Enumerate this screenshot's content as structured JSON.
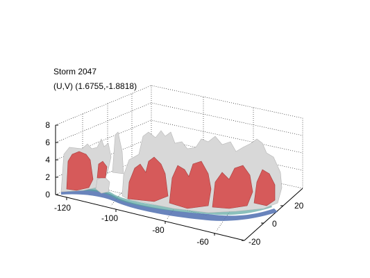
{
  "chart_data": {
    "type": "3d-isosurface",
    "title": "Storm 2047",
    "subtitle": "(U,V) (1.6755,-1.8818)",
    "x_ticks": [
      "-120",
      "-100",
      "-80",
      "-60"
    ],
    "y_ticks": [
      "-20",
      "0",
      "20"
    ],
    "z_ticks": [
      "0",
      "2",
      "4",
      "6",
      "8"
    ],
    "xlim": [
      -125,
      -50
    ],
    "ylim": [
      -25,
      30
    ],
    "zlim": [
      0,
      8
    ],
    "grid": true,
    "surfaces": [
      {
        "name": "",
        "color": "#d8d8d8",
        "role": "outer"
      },
      {
        "name": "",
        "color": "#d65a5a",
        "role": "inner"
      }
    ],
    "floor_colors": [
      "#4f6fb0",
      "#5aa5a0"
    ]
  }
}
